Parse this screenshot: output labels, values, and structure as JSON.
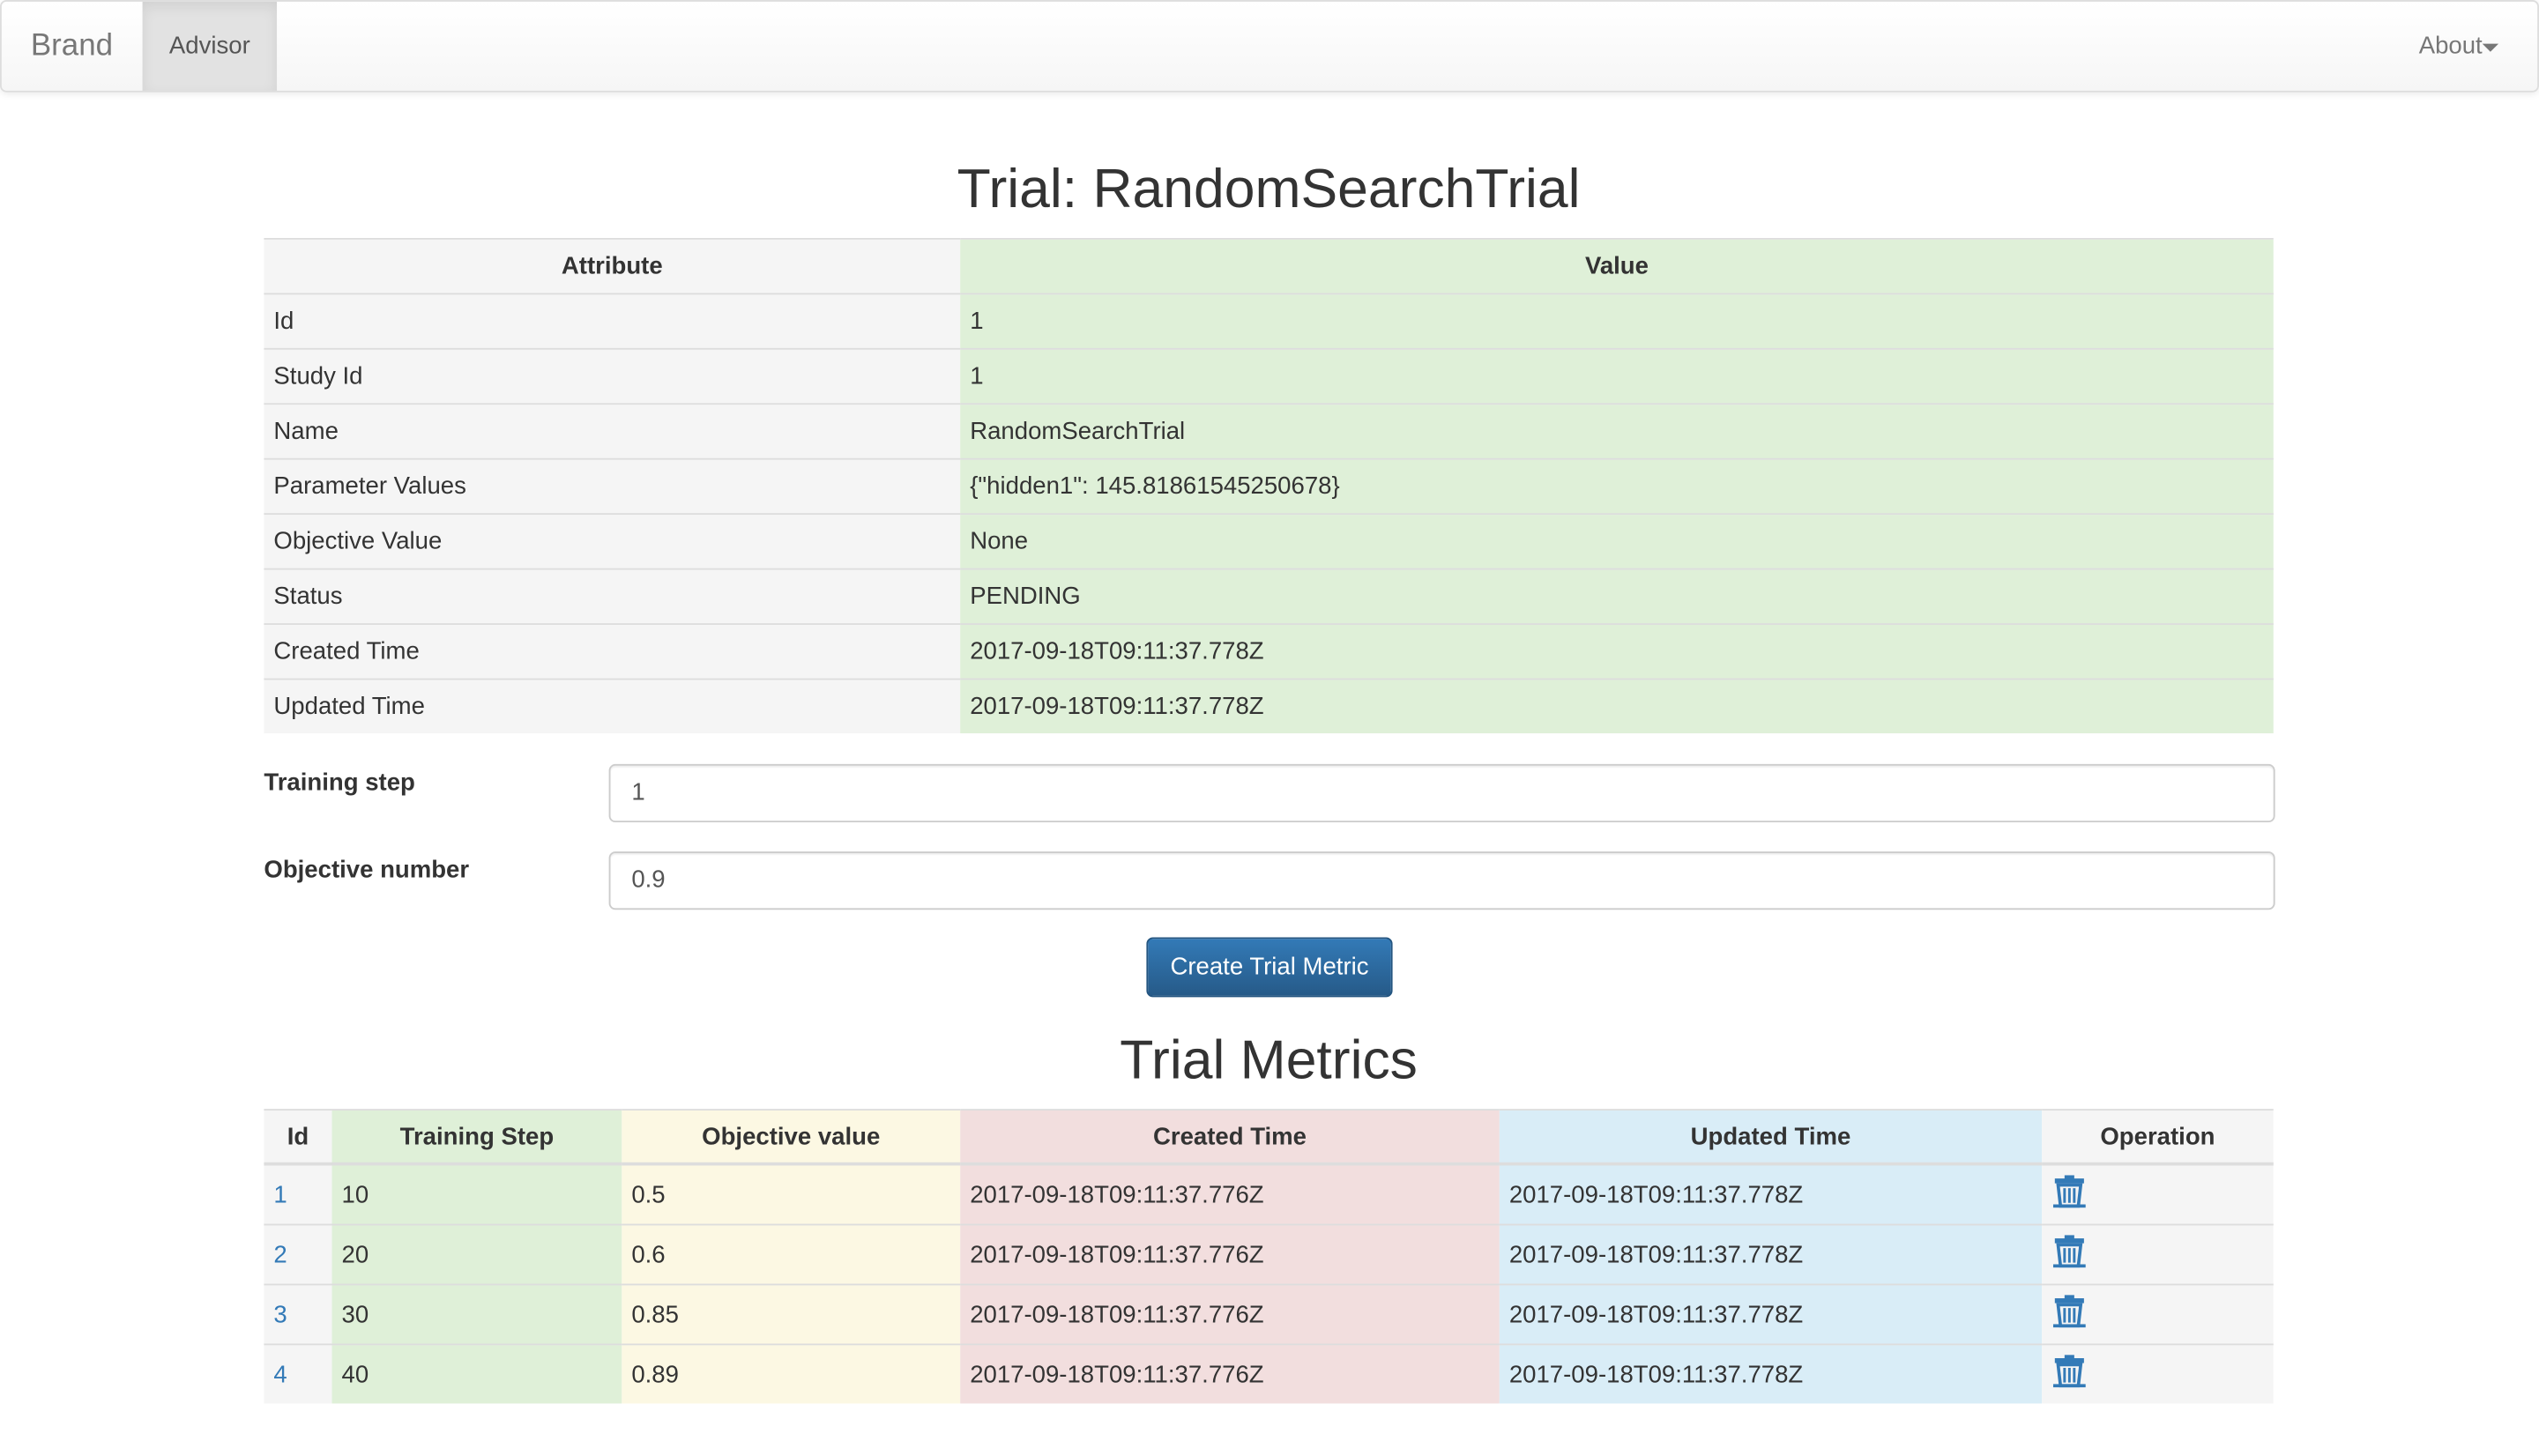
{
  "navbar": {
    "brand": "Brand",
    "active_item": "Advisor",
    "menu": "About"
  },
  "trial": {
    "title": "Trial: RandomSearchTrial",
    "table": {
      "headers": [
        "Attribute",
        "Value"
      ],
      "rows": [
        [
          "Id",
          "1"
        ],
        [
          "Study Id",
          "1"
        ],
        [
          "Name",
          "RandomSearchTrial"
        ],
        [
          "Parameter Values",
          "{\"hidden1\": 145.81861545250678}"
        ],
        [
          "Objective Value",
          "None"
        ],
        [
          "Status",
          "PENDING"
        ],
        [
          "Created Time",
          "2017-09-18T09:11:37.778Z"
        ],
        [
          "Updated Time",
          "2017-09-18T09:11:37.778Z"
        ]
      ]
    }
  },
  "form": {
    "fields": [
      {
        "label": "Training step",
        "value": "1"
      },
      {
        "label": "Objective number",
        "value": "0.9"
      }
    ],
    "button": "Create Trial Metric"
  },
  "metrics": {
    "title": "Trial Metrics",
    "table": {
      "headers": [
        "Id",
        "Training Step",
        "Objective value",
        "Created Time",
        "Updated Time",
        "Operation"
      ],
      "rows": [
        [
          "1",
          "10",
          "0.5",
          "2017-09-18T09:11:37.776Z",
          "2017-09-18T09:11:37.778Z"
        ],
        [
          "2",
          "20",
          "0.6",
          "2017-09-18T09:11:37.776Z",
          "2017-09-18T09:11:37.778Z"
        ],
        [
          "3",
          "30",
          "0.85",
          "2017-09-18T09:11:37.776Z",
          "2017-09-18T09:11:37.778Z"
        ],
        [
          "4",
          "40",
          "0.89",
          "2017-09-18T09:11:37.776Z",
          "2017-09-18T09:11:37.778Z"
        ]
      ]
    }
  }
}
